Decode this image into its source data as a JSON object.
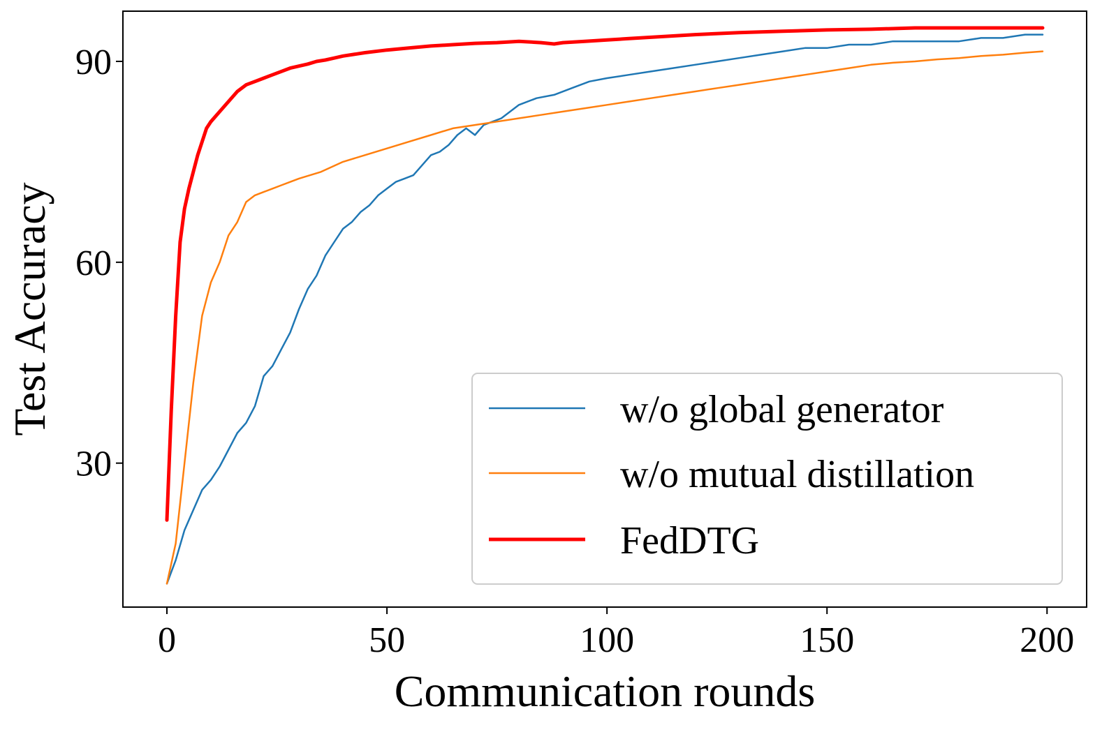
{
  "chart_data": {
    "type": "line",
    "title": "",
    "xlabel": "Communication rounds",
    "ylabel": "Test Accuracy",
    "xlim": [
      -10,
      209
    ],
    "ylim": [
      8.5,
      97.5
    ],
    "xticks": [
      0,
      50,
      100,
      150,
      200
    ],
    "yticks": [
      30,
      60,
      90
    ],
    "grid": false,
    "legend_position": "lower-right",
    "series": [
      {
        "name": "w/o global generator",
        "color": "#1f77b4",
        "x": [
          0,
          2,
          4,
          6,
          8,
          10,
          12,
          14,
          16,
          18,
          20,
          22,
          24,
          26,
          28,
          30,
          32,
          34,
          36,
          38,
          40,
          42,
          44,
          46,
          48,
          50,
          52,
          54,
          56,
          58,
          60,
          62,
          64,
          66,
          68,
          70,
          72,
          74,
          76,
          78,
          80,
          84,
          88,
          92,
          96,
          100,
          105,
          110,
          115,
          120,
          125,
          130,
          135,
          140,
          145,
          150,
          155,
          160,
          165,
          170,
          175,
          180,
          185,
          190,
          195,
          199
        ],
        "y": [
          12.0,
          15.5,
          20.0,
          23.0,
          26.0,
          27.5,
          29.5,
          32.0,
          34.5,
          36.0,
          38.5,
          43.0,
          44.5,
          47.0,
          49.5,
          53.0,
          56.0,
          58.0,
          61.0,
          63.0,
          65.0,
          66.0,
          67.5,
          68.5,
          70.0,
          71.0,
          72.0,
          72.5,
          73.0,
          74.5,
          76.0,
          76.5,
          77.5,
          79.0,
          80.0,
          79.0,
          80.5,
          81.0,
          81.5,
          82.5,
          83.5,
          84.5,
          85.0,
          86.0,
          87.0,
          87.5,
          88.0,
          88.5,
          89.0,
          89.5,
          90.0,
          90.5,
          91.0,
          91.5,
          92.0,
          92.0,
          92.5,
          92.5,
          93.0,
          93.0,
          93.0,
          93.0,
          93.5,
          93.5,
          94.0,
          94.0
        ]
      },
      {
        "name": "w/o mutual distillation",
        "color": "#ff7f0e",
        "x": [
          0,
          2,
          4,
          6,
          8,
          10,
          12,
          14,
          16,
          18,
          20,
          22,
          24,
          26,
          28,
          30,
          35,
          40,
          45,
          50,
          55,
          60,
          65,
          70,
          75,
          80,
          85,
          90,
          95,
          100,
          105,
          110,
          115,
          120,
          125,
          130,
          135,
          140,
          145,
          150,
          155,
          160,
          165,
          170,
          175,
          180,
          185,
          190,
          195,
          199
        ],
        "y": [
          12.0,
          18.0,
          30.0,
          42.0,
          52.0,
          57.0,
          60.0,
          64.0,
          66.0,
          69.0,
          70.0,
          70.5,
          71.0,
          71.5,
          72.0,
          72.5,
          73.5,
          75.0,
          76.0,
          77.0,
          78.0,
          79.0,
          80.0,
          80.5,
          81.0,
          81.5,
          82.0,
          82.5,
          83.0,
          83.5,
          84.0,
          84.5,
          85.0,
          85.5,
          86.0,
          86.5,
          87.0,
          87.5,
          88.0,
          88.5,
          89.0,
          89.5,
          89.8,
          90.0,
          90.3,
          90.5,
          90.8,
          91.0,
          91.3,
          91.5
        ]
      },
      {
        "name": "FedDTG",
        "color": "#ff0000",
        "x": [
          0,
          1,
          2,
          3,
          4,
          5,
          6,
          7,
          8,
          9,
          10,
          12,
          14,
          16,
          18,
          20,
          22,
          24,
          26,
          28,
          30,
          32,
          34,
          36,
          38,
          40,
          45,
          50,
          55,
          60,
          65,
          70,
          75,
          80,
          85,
          88,
          90,
          95,
          100,
          105,
          110,
          120,
          130,
          140,
          150,
          160,
          170,
          180,
          190,
          199
        ],
        "y": [
          21.5,
          38.0,
          52.0,
          63.0,
          68.0,
          71.0,
          73.5,
          76.0,
          78.0,
          80.0,
          81.0,
          82.5,
          84.0,
          85.5,
          86.5,
          87.0,
          87.5,
          88.0,
          88.5,
          89.0,
          89.3,
          89.6,
          90.0,
          90.2,
          90.5,
          90.8,
          91.3,
          91.7,
          92.0,
          92.3,
          92.5,
          92.7,
          92.8,
          93.0,
          92.8,
          92.6,
          92.8,
          93.0,
          93.2,
          93.4,
          93.6,
          94.0,
          94.3,
          94.5,
          94.7,
          94.8,
          95.0,
          95.0,
          95.0,
          95.0
        ]
      }
    ]
  }
}
